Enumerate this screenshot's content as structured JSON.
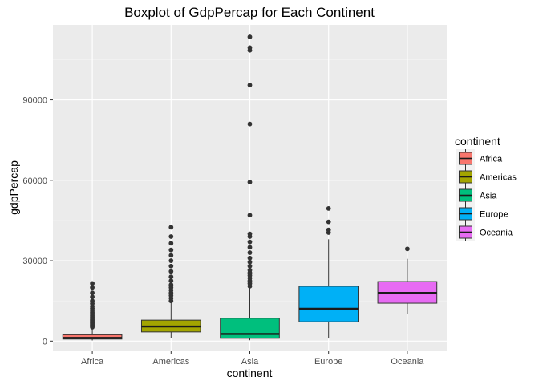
{
  "chart_data": {
    "type": "box",
    "title": "Boxplot of GdpPercap for Each Continent",
    "xlabel": "continent",
    "ylabel": "gdpPercap",
    "ylim": [
      -3500,
      118000
    ],
    "yticks": [
      0,
      30000,
      60000,
      90000
    ],
    "ytick_labels": [
      "0",
      "30000",
      "60000",
      "90000"
    ],
    "grid": true,
    "legend": {
      "title": "continent",
      "placement": "right",
      "entries": [
        "Africa",
        "Americas",
        "Asia",
        "Europe",
        "Oceania"
      ]
    },
    "categories": [
      "Africa",
      "Americas",
      "Asia",
      "Europe",
      "Oceania"
    ],
    "boxes": [
      {
        "name": "Africa",
        "color": "#F8766D",
        "whisker_low": 241,
        "q1": 761,
        "median": 1192,
        "q3": 2377,
        "whisker_high": 4800,
        "outliers": [
          5200,
          5600,
          6000,
          6400,
          6800,
          7200,
          7600,
          8000,
          8500,
          9000,
          9600,
          10200,
          10800,
          11500,
          12200,
          13000,
          14000,
          15000,
          16500,
          18000,
          20000,
          21500
        ]
      },
      {
        "name": "Americas",
        "color": "#A3A500",
        "whisker_low": 1202,
        "q1": 3428,
        "median": 5466,
        "q3": 7830,
        "whisker_high": 14300,
        "outliers": [
          15000,
          16000,
          17000,
          18000,
          19000,
          20000,
          21000,
          22500,
          24000,
          26000,
          28000,
          30000,
          32000,
          34000,
          36500,
          39000,
          42500
        ]
      },
      {
        "name": "Asia",
        "color": "#00BF7D",
        "whisker_low": 331,
        "q1": 1057,
        "median": 2647,
        "q3": 8549,
        "whisker_high": 19700,
        "outliers": [
          20500,
          21500,
          22500,
          23500,
          24500,
          25500,
          26500,
          28000,
          29500,
          31000,
          33000,
          35000,
          37000,
          39000,
          40000,
          47000,
          59300,
          81000,
          95500,
          108500,
          109500,
          113500
        ]
      },
      {
        "name": "Europe",
        "color": "#00B0F6",
        "whisker_low": 974,
        "q1": 7213,
        "median": 12082,
        "q3": 20461,
        "whisker_high": 38000,
        "outliers": [
          40500,
          41500,
          44500,
          49500
        ]
      },
      {
        "name": "Oceania",
        "color": "#E76BF3",
        "whisker_low": 10040,
        "q1": 14142,
        "median": 17983,
        "q3": 22214,
        "whisker_high": 30700,
        "outliers": [
          34400
        ]
      }
    ]
  }
}
